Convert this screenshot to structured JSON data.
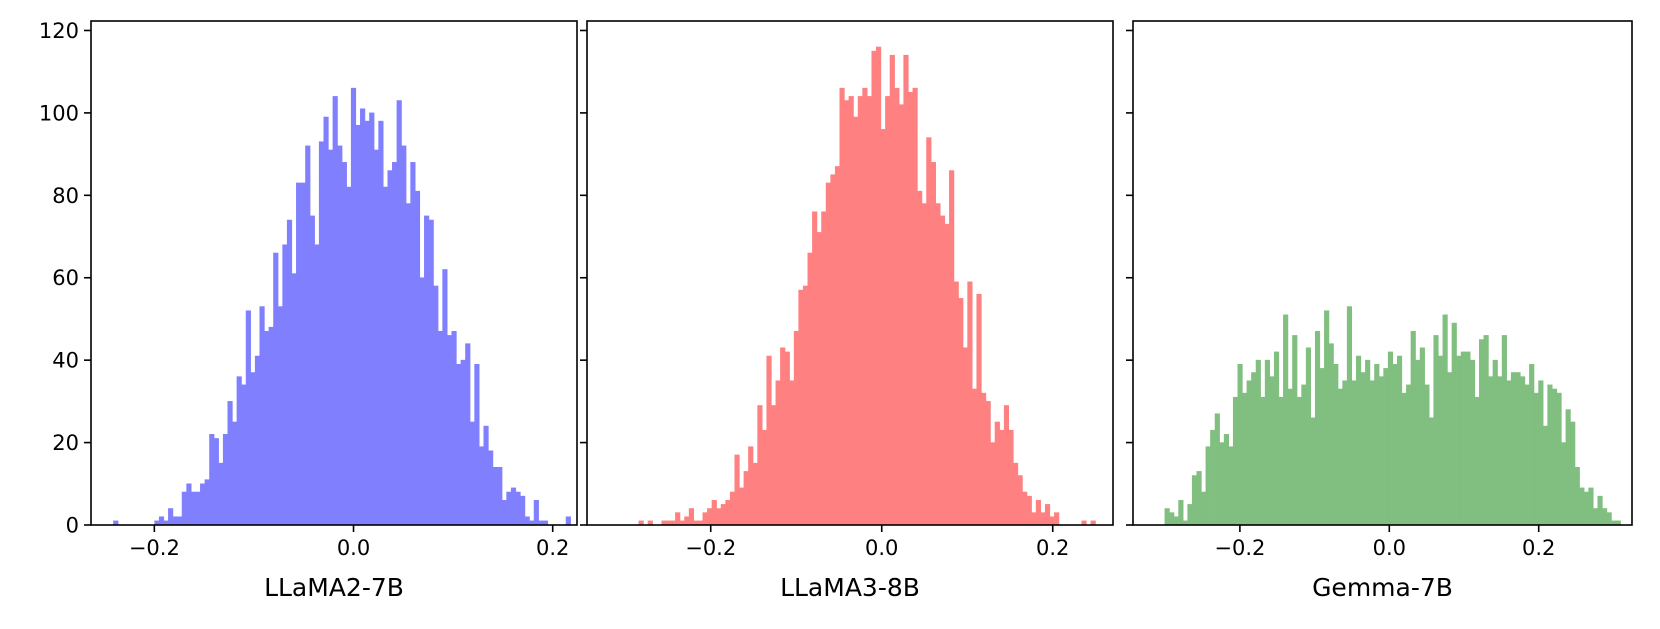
{
  "chart_data": [
    {
      "type": "bar",
      "subtype": "histogram",
      "title": "",
      "xlabel": "LLaMA2-7B",
      "ylabel": "",
      "color": "#8080ff",
      "xlim": [
        -0.2636,
        0.2244
      ],
      "ylim": [
        0,
        122.3
      ],
      "xticks": [
        -0.2,
        0.0,
        0.2
      ],
      "xtick_labels": [
        "−0.2",
        "0.0",
        "0.2"
      ],
      "yticks": [
        0,
        20,
        40,
        60,
        80,
        100,
        120
      ],
      "ytick_labels": [
        "0",
        "20",
        "40",
        "60",
        "80",
        "100",
        "120"
      ],
      "show_ytick_labels": true,
      "bin_start": -0.241,
      "bin_width": 0.00459,
      "counts": [
        1,
        0,
        0,
        0,
        0,
        0,
        0,
        0,
        0,
        1,
        2,
        1,
        4,
        2,
        2,
        8,
        10,
        8,
        8,
        10,
        11,
        22,
        21,
        15,
        22,
        30,
        25,
        36,
        34,
        52,
        37,
        41,
        53,
        47,
        48,
        66,
        53,
        68,
        74,
        61,
        83,
        83,
        92,
        75,
        68,
        93,
        99,
        91,
        104,
        92,
        88,
        82,
        106,
        97,
        101,
        98,
        100,
        91,
        98,
        82,
        86,
        88,
        103,
        92,
        78,
        88,
        81,
        60,
        75,
        74,
        58,
        47,
        62,
        46,
        47,
        39,
        40,
        44,
        25,
        39,
        19,
        24,
        18,
        14,
        14,
        6,
        8,
        9,
        8,
        7,
        2,
        1,
        6,
        1,
        1,
        0,
        0,
        0,
        0,
        2
      ]
    },
    {
      "type": "bar",
      "subtype": "histogram",
      "title": "",
      "xlabel": "LLaMA3-8B",
      "ylabel": "",
      "color": "#ff8080",
      "xlim": [
        -0.3447,
        0.2705
      ],
      "ylim": [
        0,
        122.3
      ],
      "xticks": [
        -0.2,
        0.0,
        0.2
      ],
      "xtick_labels": [
        "−0.2",
        "0.0",
        "0.2"
      ],
      "yticks": [
        0,
        20,
        40,
        60,
        80,
        100,
        120
      ],
      "ytick_labels": [],
      "show_ytick_labels": false,
      "bin_start": -0.284,
      "bin_width": 0.00534,
      "counts": [
        1,
        0,
        1,
        0,
        0,
        1,
        1,
        1,
        3,
        1,
        2,
        4,
        1,
        1,
        3,
        4,
        6,
        4,
        5,
        6,
        8,
        17,
        9,
        13,
        19,
        15,
        29,
        23,
        41,
        29,
        35,
        43,
        42,
        35,
        47,
        57,
        58,
        66,
        76,
        71,
        76,
        83,
        85,
        87,
        106,
        103,
        104,
        99,
        104,
        106,
        104,
        115,
        116,
        96,
        104,
        114,
        106,
        102,
        114,
        105,
        106,
        81,
        78,
        94,
        88,
        78,
        75,
        73,
        86,
        59,
        55,
        43,
        59,
        33,
        56,
        32,
        30,
        20,
        25,
        23,
        29,
        23,
        15,
        12,
        8,
        7,
        3,
        6,
        3,
        5,
        2,
        3,
        0,
        0,
        0,
        0,
        0,
        1,
        0,
        1
      ]
    },
    {
      "type": "bar",
      "subtype": "histogram",
      "title": "",
      "xlabel": "Gemma-7B",
      "ylabel": "",
      "color": "#80bf80",
      "xlim": [
        -0.3431,
        0.3249
      ],
      "ylim": [
        0,
        122.3
      ],
      "xticks": [
        -0.2,
        0.0,
        0.2
      ],
      "xtick_labels": [
        "−0.2",
        "0.0",
        "0.2"
      ],
      "yticks": [
        0,
        20,
        40,
        60,
        80,
        100,
        120
      ],
      "ytick_labels": [],
      "show_ytick_labels": false,
      "bin_start": -0.3004,
      "bin_width": 0.0061,
      "counts": [
        4,
        3,
        2,
        6,
        1,
        5,
        12,
        13,
        8,
        19,
        23,
        27,
        20,
        22,
        19,
        31,
        39,
        32,
        35,
        37,
        40,
        31,
        40,
        36,
        42,
        31,
        51,
        33,
        46,
        31,
        34,
        43,
        26,
        47,
        38,
        52,
        44,
        39,
        33,
        35,
        53,
        35,
        41,
        37,
        40,
        35,
        39,
        36,
        38,
        42,
        39,
        41,
        32,
        34,
        47,
        40,
        43,
        34,
        26,
        46,
        41,
        51,
        37,
        49,
        41,
        42,
        42,
        40,
        31,
        45,
        46,
        36,
        40,
        36,
        46,
        35,
        37,
        37,
        36,
        34,
        39,
        32,
        35,
        24,
        34,
        33,
        32,
        20,
        28,
        25,
        14,
        9,
        8,
        9,
        4,
        7,
        4,
        3,
        1,
        1
      ]
    }
  ]
}
